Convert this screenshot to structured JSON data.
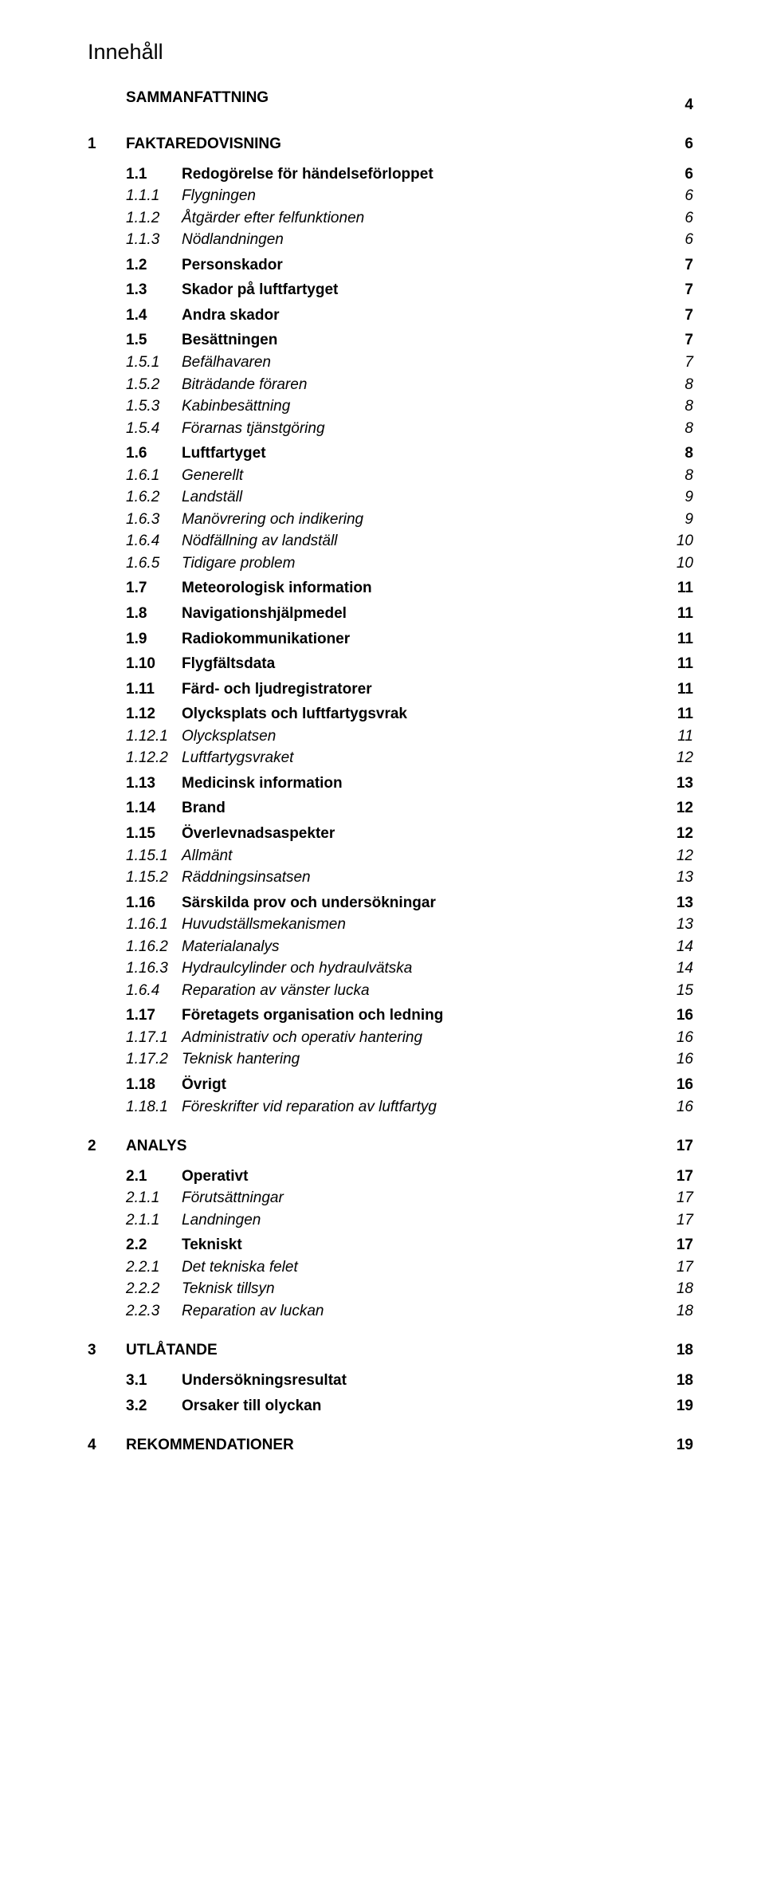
{
  "title": "Innehåll",
  "font": {
    "family": "Arial",
    "title_size": 27,
    "row_size": 19
  },
  "colors": {
    "text": "#000000",
    "background": "#ffffff"
  },
  "toc": [
    {
      "level": 0,
      "num": "",
      "label": "SAMMANFATTNING",
      "page": "4",
      "first": true
    },
    {
      "level": 0,
      "num": "1",
      "label": "FAKTAREDOVISNING",
      "page": "6"
    },
    {
      "level": 1,
      "num": "1.1",
      "label": "Redogörelse för händelseförloppet",
      "page": "6"
    },
    {
      "level": 2,
      "num": "1.1.1",
      "label": "Flygningen",
      "page": "6"
    },
    {
      "level": 2,
      "num": "1.1.2",
      "label": "Åtgärder efter felfunktionen",
      "page": "6"
    },
    {
      "level": 2,
      "num": "1.1.3",
      "label": "Nödlandningen",
      "page": "6"
    },
    {
      "level": 1,
      "num": "1.2",
      "label": "Personskador",
      "page": "7"
    },
    {
      "level": 1,
      "num": "1.3",
      "label": "Skador på luftfartyget",
      "page": "7"
    },
    {
      "level": 1,
      "num": "1.4",
      "label": "Andra skador",
      "page": "7"
    },
    {
      "level": 1,
      "num": "1.5",
      "label": "Besättningen",
      "page": "7"
    },
    {
      "level": 2,
      "num": "1.5.1",
      "label": "Befälhavaren",
      "page": "7"
    },
    {
      "level": 2,
      "num": "1.5.2",
      "label": "Biträdande föraren",
      "page": "8"
    },
    {
      "level": 2,
      "num": "1.5.3",
      "label": "Kabinbesättning",
      "page": "8"
    },
    {
      "level": 2,
      "num": "1.5.4",
      "label": "Förarnas tjänstgöring",
      "page": "8"
    },
    {
      "level": 1,
      "num": "1.6",
      "label": "Luftfartyget",
      "page": "8"
    },
    {
      "level": 2,
      "num": "1.6.1",
      "label": "Generellt",
      "page": "8"
    },
    {
      "level": 2,
      "num": "1.6.2",
      "label": "Landställ",
      "page": "9"
    },
    {
      "level": 2,
      "num": "1.6.3",
      "label": "Manövrering och indikering",
      "page": "9"
    },
    {
      "level": 2,
      "num": "1.6.4",
      "label": "Nödfällning av landställ",
      "page": "10"
    },
    {
      "level": 2,
      "num": "1.6.5",
      "label": "Tidigare problem",
      "page": "10"
    },
    {
      "level": 1,
      "num": "1.7",
      "label": "Meteorologisk information",
      "page": "11"
    },
    {
      "level": 1,
      "num": "1.8",
      "label": "Navigationshjälpmedel",
      "page": "11"
    },
    {
      "level": 1,
      "num": "1.9",
      "label": "Radiokommunikationer",
      "page": "11"
    },
    {
      "level": 1,
      "num": "1.10",
      "label": "Flygfältsdata",
      "page": "11"
    },
    {
      "level": 1,
      "num": "1.11",
      "label": "Färd- och ljudregistratorer",
      "page": "11"
    },
    {
      "level": 1,
      "num": "1.12",
      "label": "Olycksplats och luftfartygsvrak",
      "page": "11"
    },
    {
      "level": 2,
      "num": "1.12.1",
      "label": "Olycksplatsen",
      "page": "11"
    },
    {
      "level": 2,
      "num": "1.12.2",
      "label": "Luftfartygsvraket",
      "page": "12"
    },
    {
      "level": 1,
      "num": "1.13",
      "label": "Medicinsk information",
      "page": "13"
    },
    {
      "level": 1,
      "num": "1.14",
      "label": "Brand",
      "page": "12"
    },
    {
      "level": 1,
      "num": "1.15",
      "label": "Överlevnadsaspekter",
      "page": "12"
    },
    {
      "level": 2,
      "num": "1.15.1",
      "label": "Allmänt",
      "page": "12"
    },
    {
      "level": 2,
      "num": "1.15.2",
      "label": "Räddningsinsatsen",
      "page": "13"
    },
    {
      "level": 1,
      "num": "1.16",
      "label": "Särskilda prov och undersökningar",
      "page": "13"
    },
    {
      "level": 2,
      "num": "1.16.1",
      "label": "Huvudställsmekanismen",
      "page": "13"
    },
    {
      "level": 2,
      "num": "1.16.2",
      "label": "Materialanalys",
      "page": "14"
    },
    {
      "level": 2,
      "num": "1.16.3",
      "label": "Hydraulcylinder och hydraulvätska",
      "page": "14"
    },
    {
      "level": 2,
      "num": "1.6.4",
      "label": "Reparation av vänster lucka",
      "page": "15"
    },
    {
      "level": 1,
      "num": "1.17",
      "label": "Företagets organisation och ledning",
      "page": "16"
    },
    {
      "level": 2,
      "num": "1.17.1",
      "label": "Administrativ och operativ hantering",
      "page": "16"
    },
    {
      "level": 2,
      "num": "1.17.2",
      "label": "Teknisk hantering",
      "page": "16"
    },
    {
      "level": 1,
      "num": "1.18",
      "label": "Övrigt",
      "page": "16"
    },
    {
      "level": 2,
      "num": "1.18.1",
      "label": "Föreskrifter vid reparation av luftfartyg",
      "page": "16"
    },
    {
      "level": 0,
      "num": "2",
      "label": "ANALYS",
      "page": "17"
    },
    {
      "level": 1,
      "num": "2.1",
      "label": "Operativt",
      "page": "17"
    },
    {
      "level": 2,
      "num": "2.1.1",
      "label": "Förutsättningar",
      "page": "17"
    },
    {
      "level": 2,
      "num": "2.1.1",
      "label": "Landningen",
      "page": "17"
    },
    {
      "level": 1,
      "num": "2.2",
      "label": "Tekniskt",
      "page": "17"
    },
    {
      "level": 2,
      "num": "2.2.1",
      "label": "Det tekniska felet",
      "page": "17"
    },
    {
      "level": 2,
      "num": "2.2.2",
      "label": "Teknisk tillsyn",
      "page": "18"
    },
    {
      "level": 2,
      "num": "2.2.3",
      "label": "Reparation av luckan",
      "page": "18"
    },
    {
      "level": 0,
      "num": "3",
      "label": "UTLÅTANDE",
      "page": "18"
    },
    {
      "level": 1,
      "num": "3.1",
      "label": "Undersökningsresultat",
      "page": "18"
    },
    {
      "level": 1,
      "num": "3.2",
      "label": "Orsaker till olyckan",
      "page": "19"
    },
    {
      "level": 0,
      "num": "4",
      "label": "REKOMMENDATIONER",
      "page": "19"
    }
  ]
}
